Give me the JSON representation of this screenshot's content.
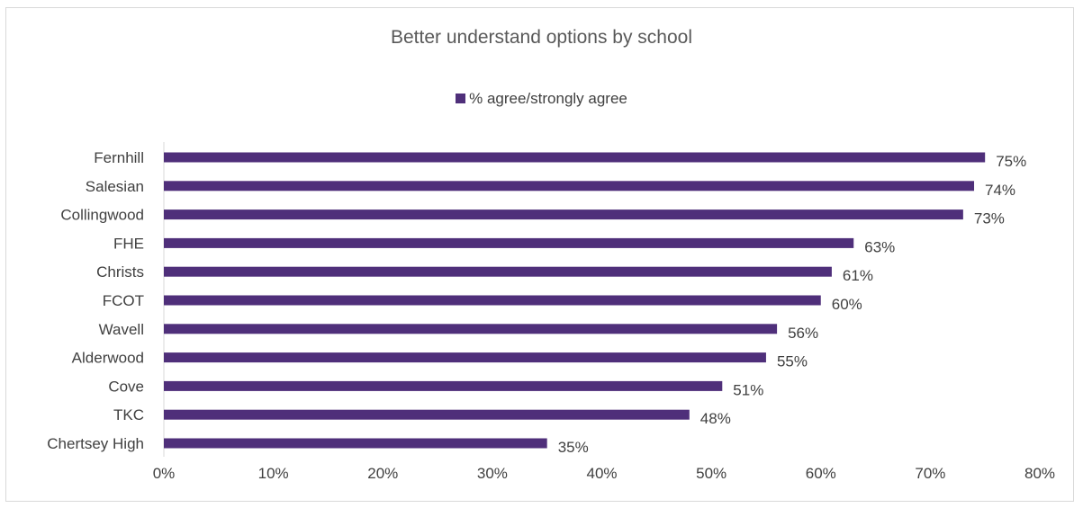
{
  "chart_data": {
    "type": "bar",
    "orientation": "horizontal",
    "title": "Better understand options by school",
    "categories": [
      "Fernhill",
      "Salesian",
      "Collingwood",
      "FHE",
      "Christs",
      "FCOT",
      "Wavell",
      "Alderwood",
      "Cove",
      "TKC",
      "Chertsey High"
    ],
    "series": [
      {
        "name": "% agree/strongly agree",
        "values": [
          75,
          74,
          73,
          63,
          61,
          60,
          56,
          55,
          51,
          48,
          35
        ],
        "data_labels": [
          "75%",
          "74%",
          "73%",
          "63%",
          "61%",
          "60%",
          "56%",
          "55%",
          "51%",
          "48%",
          "35%"
        ]
      }
    ],
    "xlim": [
      0,
      80
    ],
    "x_ticks": [
      "0%",
      "10%",
      "20%",
      "30%",
      "40%",
      "50%",
      "60%",
      "70%",
      "80%"
    ],
    "xlabel": "",
    "ylabel": "",
    "legend": "top-center",
    "grid": false,
    "bar_color": "#4f2f7a"
  }
}
